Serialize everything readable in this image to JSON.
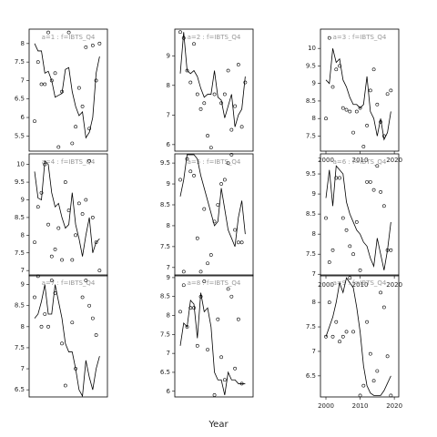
{
  "xlabel": "Year",
  "chart_data": [
    {
      "type": "scatter",
      "title": "a=1 : f=IBTS_Q4",
      "xlim": [
        1998.4,
        2021.3
      ],
      "ylim": [
        5.09,
        8.39
      ],
      "yticks": [
        5.5,
        6.0,
        6.5,
        7.0,
        7.5,
        8.0
      ],
      "x": [
        2000,
        2001,
        2002,
        2003,
        2004,
        2005,
        2006,
        2007,
        2008,
        2010,
        2011,
        2012,
        2013,
        2014,
        2015,
        2016,
        2017,
        2018,
        2019
      ],
      "values": [
        5.9,
        7.5,
        6.9,
        6.9,
        8.3,
        7.0,
        7.2,
        5.2,
        6.7,
        8.3,
        5.3,
        5.75,
        6.8,
        6.3,
        7.9,
        5.7,
        7.95,
        7.0,
        8.0
      ],
      "fit_x": [
        2000,
        2001,
        2002,
        2003,
        2004,
        2005,
        2006,
        2007,
        2008,
        2009,
        2010,
        2011,
        2012,
        2013,
        2014,
        2015,
        2016,
        2017,
        2018,
        2019
      ],
      "fit": [
        8.0,
        7.8,
        7.8,
        7.2,
        7.25,
        7.0,
        6.55,
        6.6,
        6.65,
        7.3,
        7.35,
        6.7,
        6.3,
        6.05,
        6.15,
        5.45,
        5.6,
        6.0,
        7.2,
        7.65
      ]
    },
    {
      "type": "scatter",
      "title": "a=4 : f=IBTS_Q4",
      "xlim": [
        1998.4,
        2021.3
      ],
      "ylim": [
        6.85,
        10.3
      ],
      "yticks": [
        7.0,
        7.5,
        8.0,
        8.5,
        9.0,
        9.5,
        10.0
      ],
      "x": [
        2000,
        2001,
        2002,
        2003,
        2004,
        2005,
        2006,
        2007,
        2008,
        2009,
        2010,
        2011,
        2012,
        2013,
        2014,
        2015,
        2016,
        2017,
        2018,
        2019
      ],
      "values": [
        7.8,
        8.8,
        9.2,
        10.0,
        8.3,
        7.4,
        7.6,
        8.2,
        7.3,
        9.5,
        8.7,
        7.3,
        8.0,
        8.9,
        8.6,
        9.0,
        10.1,
        8.5,
        7.8,
        7.0
      ],
      "fit_x": [
        2000,
        2001,
        2002,
        2003,
        2004,
        2005,
        2006,
        2007,
        2008,
        2009,
        2010,
        2011,
        2012,
        2013,
        2014,
        2015,
        2016,
        2017,
        2018,
        2019
      ],
      "fit": [
        9.8,
        9.05,
        9.0,
        10.1,
        10.0,
        9.2,
        8.8,
        8.9,
        8.5,
        8.2,
        8.3,
        9.2,
        8.3,
        7.9,
        7.4,
        8.0,
        8.5,
        7.5,
        7.8,
        7.9
      ]
    },
    {
      "type": "scatter",
      "title": "a=7 : f=IBTS_Q4",
      "xlim": [
        1998.4,
        2021.3
      ],
      "ylim": [
        6.33,
        9.23
      ],
      "yticks": [
        6.5,
        7.0,
        7.5,
        8.0,
        8.5,
        9.0
      ],
      "x": [
        2000,
        2001,
        2002,
        2003,
        2004,
        2005,
        2006,
        2008,
        2009,
        2011,
        2012,
        2014,
        2015,
        2016,
        2017,
        2018
      ],
      "values": [
        8.7,
        9.2,
        8.0,
        8.3,
        8.0,
        9.1,
        8.8,
        7.6,
        6.6,
        8.1,
        7.0,
        8.7,
        9.1,
        8.5,
        8.2,
        7.8
      ],
      "fit_x": [
        2000,
        2001,
        2002,
        2003,
        2004,
        2005,
        2006,
        2007,
        2008,
        2009,
        2010,
        2011,
        2012,
        2013,
        2014,
        2015,
        2016,
        2017,
        2018,
        2019
      ],
      "fit": [
        8.2,
        8.3,
        8.6,
        9.0,
        8.3,
        8.3,
        9.0,
        8.6,
        8.2,
        7.6,
        7.4,
        7.4,
        7.0,
        6.5,
        6.35,
        7.2,
        6.8,
        6.5,
        7.0,
        7.3
      ]
    },
    {
      "type": "scatter",
      "title": "a=2 : f=IBTS_Q4",
      "xlim": [
        1998.4,
        2021.3
      ],
      "ylim": [
        5.78,
        9.9
      ],
      "yticks": [
        6,
        7,
        8,
        9
      ],
      "x": [
        2000,
        2001,
        2002,
        2003,
        2004,
        2005,
        2006,
        2007,
        2008,
        2009,
        2010,
        2012,
        2013,
        2014,
        2015,
        2016,
        2017,
        2018,
        2019
      ],
      "values": [
        9.8,
        9.6,
        8.5,
        8.1,
        9.4,
        7.7,
        7.2,
        7.4,
        6.3,
        5.9,
        7.7,
        7.4,
        7.7,
        8.5,
        6.5,
        7.3,
        8.7,
        6.6,
        8.1
      ],
      "fit_x": [
        2000,
        2001,
        2002,
        2003,
        2004,
        2005,
        2006,
        2007,
        2008,
        2009,
        2010,
        2011,
        2012,
        2013,
        2014,
        2015,
        2016,
        2017,
        2018,
        2019
      ],
      "fit": [
        8.4,
        9.8,
        8.5,
        8.4,
        8.5,
        8.3,
        7.9,
        7.6,
        7.7,
        7.7,
        8.5,
        7.6,
        7.5,
        6.9,
        7.3,
        7.7,
        6.6,
        7.0,
        7.2,
        8.3
      ]
    },
    {
      "type": "scatter",
      "title": "a=5 : f=IBTS_Q4",
      "xlim": [
        1998.4,
        2021.3
      ],
      "ylim": [
        6.8,
        9.72
      ],
      "yticks": [
        7.0,
        7.5,
        8.0,
        8.5,
        9.0,
        9.5
      ],
      "x": [
        2000,
        2001,
        2002,
        2003,
        2004,
        2005,
        2006,
        2007,
        2008,
        2009,
        2010,
        2011,
        2012,
        2013,
        2014,
        2015,
        2016,
        2017,
        2018
      ],
      "values": [
        9.1,
        6.9,
        9.6,
        9.3,
        9.2,
        7.7,
        6.9,
        8.4,
        7.1,
        7.3,
        8.1,
        8.5,
        9.0,
        9.1,
        9.5,
        9.7,
        7.9,
        7.6,
        7.6
      ],
      "fit_x": [
        2000,
        2001,
        2002,
        2003,
        2004,
        2005,
        2006,
        2007,
        2008,
        2009,
        2010,
        2011,
        2012,
        2013,
        2014,
        2015,
        2016,
        2017,
        2018,
        2019
      ],
      "fit": [
        8.7,
        9.1,
        9.7,
        9.7,
        9.7,
        9.6,
        9.2,
        8.9,
        8.6,
        8.3,
        8.0,
        8.1,
        8.9,
        8.4,
        7.9,
        7.7,
        7.5,
        8.2,
        8.6,
        7.8
      ]
    },
    {
      "type": "scatter",
      "title": "a=8 : f=IBTS_Q4",
      "xlim": [
        1998.4,
        2021.3
      ],
      "ylim": [
        5.85,
        9.07
      ],
      "yticks": [
        6.0,
        6.5,
        7.0,
        7.5,
        8.0,
        8.5,
        9.0
      ],
      "x": [
        2000,
        2001,
        2002,
        2003,
        2004,
        2005,
        2006,
        2007,
        2008,
        2010,
        2011,
        2012,
        2013,
        2014,
        2015,
        2016,
        2017,
        2018
      ],
      "values": [
        8.1,
        8.8,
        7.7,
        8.2,
        8.2,
        7.2,
        8.5,
        8.9,
        7.1,
        5.9,
        7.9,
        6.9,
        6.3,
        8.7,
        8.5,
        6.6,
        7.9,
        6.2
      ],
      "fit_x": [
        2000,
        2001,
        2002,
        2003,
        2004,
        2005,
        2006,
        2007,
        2008,
        2009,
        2010,
        2011,
        2012,
        2013,
        2014,
        2015,
        2016,
        2017,
        2018,
        2019
      ],
      "fit": [
        7.2,
        7.8,
        7.7,
        8.4,
        8.3,
        7.4,
        8.6,
        8.1,
        8.2,
        7.7,
        6.5,
        6.3,
        6.3,
        5.9,
        6.5,
        6.3,
        6.3,
        6.2,
        6.2,
        6.2
      ]
    },
    {
      "type": "scatter",
      "title": "a=3 : f=IBTS_Q4",
      "xlim": [
        1998.4,
        2021.3
      ],
      "ylim": [
        7.07,
        10.55
      ],
      "yticks": [
        7.5,
        8.0,
        8.5,
        9.0,
        9.5,
        10.0
      ],
      "xticks": [
        2000,
        2010,
        2020
      ],
      "x": [
        2000,
        2001,
        2002,
        2003,
        2004,
        2005,
        2006,
        2007,
        2008,
        2009,
        2010,
        2011,
        2012,
        2013,
        2014,
        2015,
        2016,
        2017,
        2018,
        2019
      ],
      "values": [
        8.0,
        10.3,
        8.9,
        9.4,
        9.5,
        8.3,
        8.25,
        8.2,
        7.6,
        8.2,
        8.3,
        7.2,
        7.8,
        8.8,
        9.4,
        8.4,
        7.9,
        7.5,
        8.7,
        8.8
      ],
      "fit_x": [
        2000,
        2001,
        2002,
        2003,
        2004,
        2005,
        2006,
        2007,
        2008,
        2009,
        2010,
        2011,
        2012,
        2013,
        2014,
        2015,
        2016,
        2017,
        2018,
        2019
      ],
      "fit": [
        9.1,
        9.0,
        10.0,
        9.6,
        9.7,
        9.1,
        8.9,
        8.6,
        8.4,
        8.4,
        8.3,
        8.4,
        9.2,
        8.2,
        8.0,
        7.5,
        8.0,
        7.4,
        7.6,
        8.2
      ]
    },
    {
      "type": "scatter",
      "title": "a=6 : f=IBTS_Q4",
      "xlim": [
        1998.4,
        2021.3
      ],
      "ylim": [
        6.96,
        10.0
      ],
      "yticks": [
        7.0,
        7.5,
        8.0,
        8.5,
        9.0,
        9.5
      ],
      "xticks": [
        2000,
        2010,
        2020
      ],
      "x": [
        2000,
        2001,
        2002,
        2003,
        2004,
        2005,
        2006,
        2007,
        2008,
        2009,
        2010,
        2012,
        2013,
        2014,
        2015,
        2016,
        2017,
        2018,
        2019
      ],
      "values": [
        8.4,
        7.3,
        7.6,
        9.4,
        9.4,
        8.4,
        8.1,
        7.7,
        7.5,
        8.3,
        7.1,
        9.3,
        9.3,
        9.1,
        9.7,
        9.05,
        8.7,
        7.6,
        7.6
      ],
      "fit_x": [
        2000,
        2001,
        2002,
        2003,
        2004,
        2005,
        2006,
        2007,
        2008,
        2009,
        2010,
        2011,
        2012,
        2013,
        2014,
        2015,
        2016,
        2017,
        2018,
        2019
      ],
      "fit": [
        8.9,
        9.6,
        8.7,
        9.7,
        9.6,
        9.5,
        8.8,
        8.5,
        8.3,
        8.1,
        8.0,
        7.8,
        7.7,
        7.4,
        7.2,
        7.9,
        7.5,
        7.1,
        7.6,
        8.3
      ]
    },
    {
      "type": "scatter",
      "title": "a=9 : f=IBTS_Q4",
      "xlim": [
        1998.4,
        2021.3
      ],
      "ylim": [
        6.07,
        8.56
      ],
      "yticks": [
        6.5,
        7.0,
        7.5,
        8.0
      ],
      "xticks": [
        2000,
        2010,
        2020
      ],
      "x": [
        2000,
        2001,
        2002,
        2003,
        2004,
        2005,
        2006,
        2007,
        2008,
        2010,
        2011,
        2012,
        2013,
        2014,
        2015,
        2016,
        2017,
        2018,
        2019
      ],
      "values": [
        7.3,
        8.0,
        7.3,
        7.6,
        7.2,
        7.3,
        7.4,
        8.5,
        7.4,
        6.1,
        6.3,
        7.6,
        6.95,
        6.4,
        6.6,
        8.2,
        7.9,
        6.9,
        6.1
      ],
      "fit_x": [
        2000,
        2001,
        2002,
        2003,
        2004,
        2005,
        2006,
        2007,
        2008,
        2009,
        2010,
        2011,
        2012,
        2013,
        2014,
        2015,
        2016,
        2017,
        2018,
        2019
      ],
      "fit": [
        7.3,
        7.5,
        7.7,
        8.0,
        8.4,
        8.2,
        8.5,
        8.4,
        8.3,
        7.9,
        7.4,
        6.7,
        6.3,
        6.15,
        6.1,
        6.1,
        6.1,
        6.2,
        6.35,
        6.5
      ]
    }
  ]
}
